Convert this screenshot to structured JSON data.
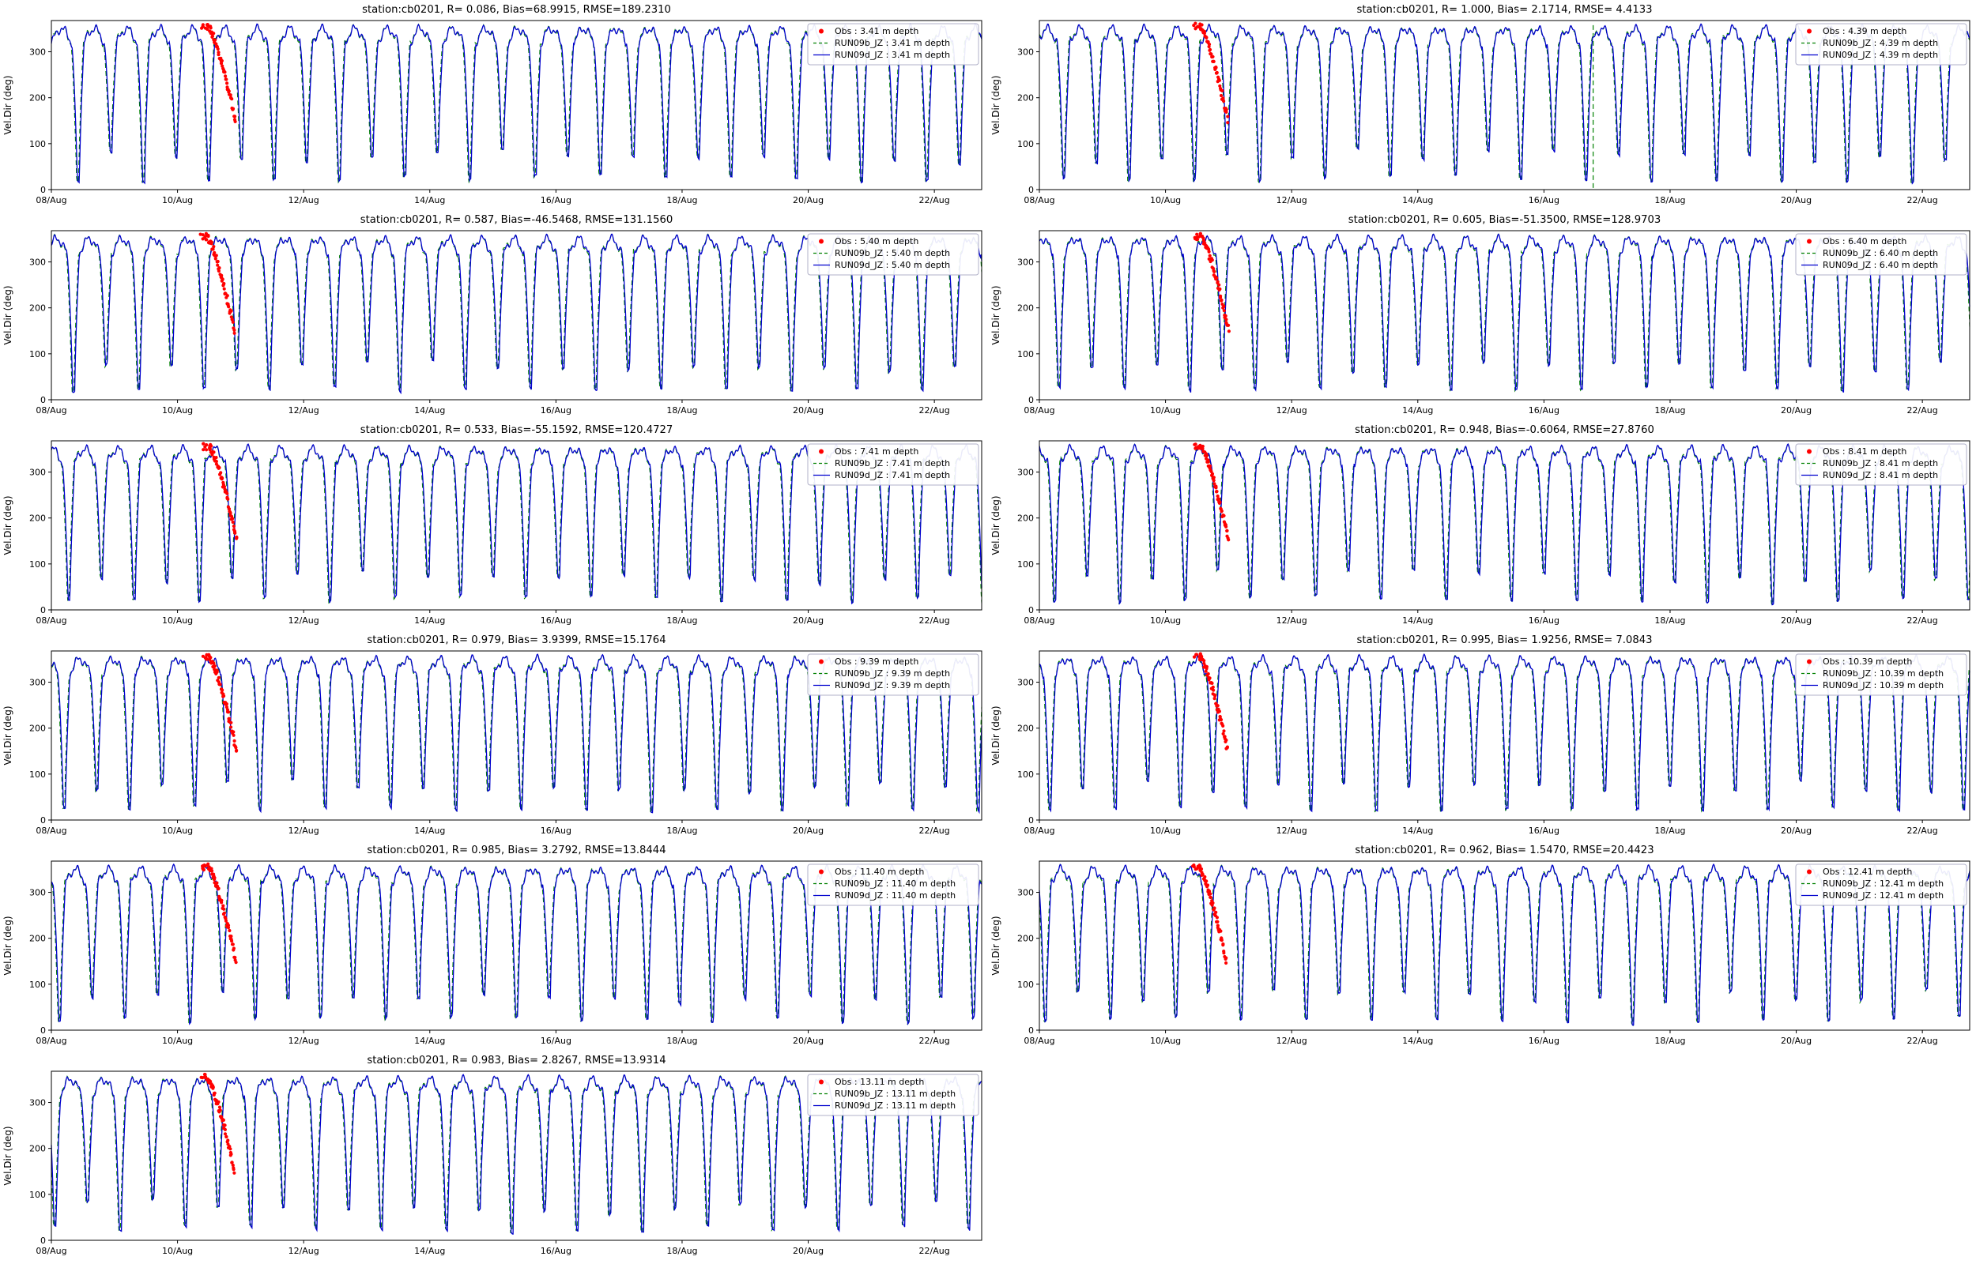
{
  "figure": {
    "ylabel": "Vel.Dir (deg)",
    "yticks": [
      0,
      100,
      200,
      300
    ],
    "ylim": [
      0,
      368
    ],
    "xtick_labels": [
      "08/Aug",
      "10/Aug",
      "12/Aug",
      "14/Aug",
      "16/Aug",
      "18/Aug",
      "20/Aug",
      "22/Aug"
    ],
    "xtick_interval_days": 2,
    "x_span_days": 14.75,
    "grid": false,
    "legend_position": "upper right",
    "series_note": "Blue solid (RUN09d_JZ) and green dashed (RUN09b_JZ) model lines nearly coincide: semidiurnal tidal current direction oscillation wrapping 0-360 deg, period ~12.4 h, plateaus ~320-350 deg with sharp dips toward 0-80 deg. Red Obs dots form a short descending strand ~350 to ~150 deg around 10.5-11 Aug.",
    "colors": {
      "obs": "#ff0000",
      "run09b": "#008000",
      "run09d": "#0000cd",
      "frame": "#000000",
      "legend_border": "#b0b0c8",
      "legend_bg": "#ffffff"
    },
    "tide": {
      "period_days": 0.5175,
      "plateau_base": 318,
      "plateau_amp": 32,
      "dip_low_even": 16,
      "dip_low_odd": 58
    }
  },
  "chart_data": [
    {
      "type": "line",
      "station": "cb0201",
      "depth_m": "3.41",
      "title": "station:cb0201, R= 0.086, Bias=68.9915, RMSE=189.2310",
      "stats": {
        "R": 0.086,
        "Bias": 68.9915,
        "RMSE": 189.231
      },
      "legend": [
        "Obs : 3.41 m depth",
        "RUN09b_JZ : 3.41 m depth",
        "RUN09d_JZ : 3.41 m depth"
      ],
      "x_range": [
        "08/Aug",
        "22/Aug"
      ]
    },
    {
      "type": "line",
      "station": "cb0201",
      "depth_m": "4.39",
      "title": "station:cb0201, R= 1.000, Bias= 2.1714, RMSE= 4.4133",
      "stats": {
        "R": 1.0,
        "Bias": 2.1714,
        "RMSE": 4.4133
      },
      "legend": [
        "Obs : 4.39 m depth",
        "RUN09b_JZ : 4.39 m depth",
        "RUN09d_JZ : 4.39 m depth"
      ],
      "x_range": [
        "08/Aug",
        "22/Aug"
      ],
      "anomaly": {
        "green_dashed_drop_at_day": 8.78
      }
    },
    {
      "type": "line",
      "station": "cb0201",
      "depth_m": "5.40",
      "title": "station:cb0201, R= 0.587, Bias=-46.5468, RMSE=131.1560",
      "stats": {
        "R": 0.587,
        "Bias": -46.5468,
        "RMSE": 131.156
      },
      "legend": [
        "Obs : 5.40 m depth",
        "RUN09b_JZ : 5.40 m depth",
        "RUN09d_JZ : 5.40 m depth"
      ],
      "x_range": [
        "08/Aug",
        "22/Aug"
      ]
    },
    {
      "type": "line",
      "station": "cb0201",
      "depth_m": "6.40",
      "title": "station:cb0201, R= 0.605, Bias=-51.3500, RMSE=128.9703",
      "stats": {
        "R": 0.605,
        "Bias": -51.35,
        "RMSE": 128.9703
      },
      "legend": [
        "Obs : 6.40 m depth",
        "RUN09b_JZ : 6.40 m depth",
        "RUN09d_JZ : 6.40 m depth"
      ],
      "x_range": [
        "08/Aug",
        "22/Aug"
      ]
    },
    {
      "type": "line",
      "station": "cb0201",
      "depth_m": "7.41",
      "title": "station:cb0201, R= 0.533, Bias=-55.1592, RMSE=120.4727",
      "stats": {
        "R": 0.533,
        "Bias": -55.1592,
        "RMSE": 120.4727
      },
      "legend": [
        "Obs : 7.41 m depth",
        "RUN09b_JZ : 7.41 m depth",
        "RUN09d_JZ : 7.41 m depth"
      ],
      "x_range": [
        "08/Aug",
        "22/Aug"
      ]
    },
    {
      "type": "line",
      "station": "cb0201",
      "depth_m": "8.41",
      "title": "station:cb0201, R= 0.948, Bias=-0.6064, RMSE=27.8760",
      "stats": {
        "R": 0.948,
        "Bias": -0.6064,
        "RMSE": 27.876
      },
      "legend": [
        "Obs : 8.41 m depth",
        "RUN09b_JZ : 8.41 m depth",
        "RUN09d_JZ : 8.41 m depth"
      ],
      "x_range": [
        "08/Aug",
        "22/Aug"
      ]
    },
    {
      "type": "line",
      "station": "cb0201",
      "depth_m": "9.39",
      "title": "station:cb0201, R= 0.979, Bias= 3.9399, RMSE=15.1764",
      "stats": {
        "R": 0.979,
        "Bias": 3.9399,
        "RMSE": 15.1764
      },
      "legend": [
        "Obs : 9.39 m depth",
        "RUN09b_JZ : 9.39 m depth",
        "RUN09d_JZ : 9.39 m depth"
      ],
      "x_range": [
        "08/Aug",
        "22/Aug"
      ]
    },
    {
      "type": "line",
      "station": "cb0201",
      "depth_m": "10.39",
      "title": "station:cb0201, R= 0.995, Bias= 1.9256, RMSE= 7.0843",
      "stats": {
        "R": 0.995,
        "Bias": 1.9256,
        "RMSE": 7.0843
      },
      "legend": [
        "Obs : 10.39 m depth",
        "RUN09b_JZ : 10.39 m depth",
        "RUN09d_JZ : 10.39 m depth"
      ],
      "x_range": [
        "08/Aug",
        "22/Aug"
      ]
    },
    {
      "type": "line",
      "station": "cb0201",
      "depth_m": "11.40",
      "title": "station:cb0201, R= 0.985, Bias= 3.2792, RMSE=13.8444",
      "stats": {
        "R": 0.985,
        "Bias": 3.2792,
        "RMSE": 13.8444
      },
      "legend": [
        "Obs : 11.40 m depth",
        "RUN09b_JZ : 11.40 m depth",
        "RUN09d_JZ : 11.40 m depth"
      ],
      "x_range": [
        "08/Aug",
        "22/Aug"
      ]
    },
    {
      "type": "line",
      "station": "cb0201",
      "depth_m": "12.41",
      "title": "station:cb0201, R= 0.962, Bias= 1.5470, RMSE=20.4423",
      "stats": {
        "R": 0.962,
        "Bias": 1.547,
        "RMSE": 20.4423
      },
      "legend": [
        "Obs : 12.41 m depth",
        "RUN09b_JZ : 12.41 m depth",
        "RUN09d_JZ : 12.41 m depth"
      ],
      "x_range": [
        "08/Aug",
        "22/Aug"
      ]
    },
    {
      "type": "line",
      "station": "cb0201",
      "depth_m": "13.11",
      "title": "station:cb0201, R= 0.983, Bias= 2.8267, RMSE=13.9314",
      "stats": {
        "R": 0.983,
        "Bias": 2.8267,
        "RMSE": 13.9314
      },
      "legend": [
        "Obs : 13.11 m depth",
        "RUN09b_JZ : 13.11 m depth",
        "RUN09d_JZ : 13.11 m depth"
      ],
      "x_range": [
        "08/Aug",
        "22/Aug"
      ]
    }
  ]
}
